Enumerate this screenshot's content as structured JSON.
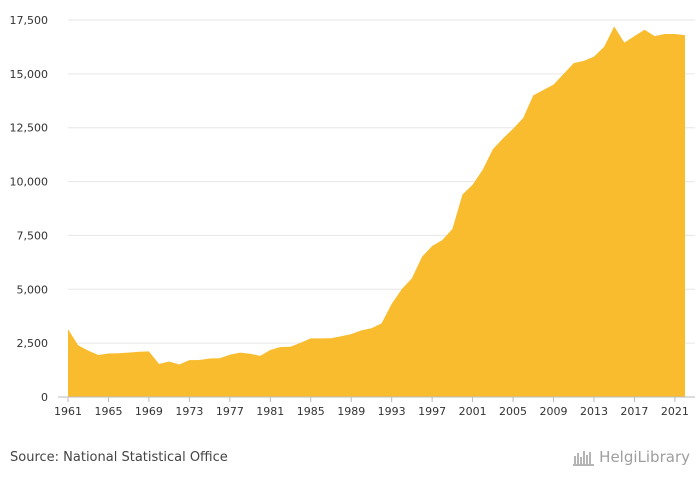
{
  "chart_data": {
    "type": "area",
    "x": [
      1961,
      1962,
      1963,
      1964,
      1965,
      1966,
      1967,
      1968,
      1969,
      1970,
      1971,
      1972,
      1973,
      1974,
      1975,
      1976,
      1977,
      1978,
      1979,
      1980,
      1981,
      1982,
      1983,
      1984,
      1985,
      1986,
      1987,
      1988,
      1989,
      1990,
      1991,
      1992,
      1993,
      1994,
      1995,
      1996,
      1997,
      1998,
      1999,
      2000,
      2001,
      2002,
      2003,
      2004,
      2005,
      2006,
      2007,
      2008,
      2009,
      2010,
      2011,
      2012,
      2013,
      2014,
      2015,
      2016,
      2017,
      2018,
      2019,
      2020,
      2021,
      2022
    ],
    "series": [
      {
        "values": [
          3150,
          2400,
          2150,
          1950,
          2020,
          2030,
          2060,
          2100,
          2120,
          1530,
          1650,
          1510,
          1710,
          1720,
          1790,
          1800,
          1960,
          2060,
          2010,
          1910,
          2180,
          2320,
          2330,
          2520,
          2720,
          2720,
          2730,
          2820,
          2920,
          3090,
          3190,
          3420,
          4320,
          5010,
          5510,
          6510,
          7010,
          7280,
          7800,
          9400,
          9850,
          10550,
          11500,
          12000,
          12450,
          12950,
          14000,
          14250,
          14500,
          15000,
          15500,
          15600,
          15800,
          16250,
          17200,
          16450,
          16750,
          17050,
          16750,
          16850,
          16850,
          16800
        ]
      }
    ],
    "ylim": [
      0,
      17500
    ],
    "yticks": [
      0,
      2500,
      5000,
      7500,
      10000,
      12500,
      15000,
      17500
    ],
    "yticklabels": [
      "0",
      "2,500",
      "5,000",
      "7,500",
      "10,000",
      "12,500",
      "15,000",
      "17,500"
    ],
    "xticks": [
      1961,
      1965,
      1969,
      1973,
      1977,
      1981,
      1985,
      1989,
      1993,
      1997,
      2001,
      2005,
      2009,
      2013,
      2017,
      2021
    ],
    "xticklabels": [
      "1961",
      "1965",
      "1969",
      "1973",
      "1977",
      "1981",
      "1985",
      "1989",
      "1993",
      "1997",
      "2001",
      "2005",
      "2009",
      "2013",
      "2017",
      "2021"
    ],
    "grid": true,
    "color": "#f8bc2e"
  },
  "source_text": "Source: National Statistical Office",
  "brand": {
    "name": "HelgiLibrary",
    "color": "#9e9e9e",
    "icon": "library-logo-icon"
  }
}
